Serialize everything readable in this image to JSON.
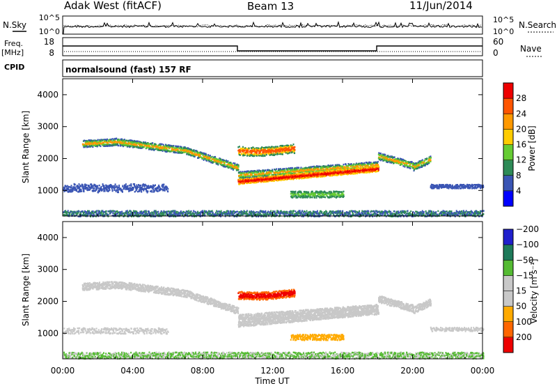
{
  "header": {
    "station": "Adak West (fitACF)",
    "beam": "Beam 13",
    "date": "11/Jun/2014"
  },
  "noise_panel": {
    "left_label": "N.Sky",
    "right_label": "N.Search",
    "left_ticks": [
      "10^5",
      "10^0"
    ],
    "right_ticks": [
      "10^5",
      "10^0"
    ]
  },
  "freq_panel": {
    "left_label_1": "Freq.",
    "left_label_2": "[MHz]",
    "right_label": "Nave",
    "left_ticks": [
      "18",
      "8"
    ],
    "right_ticks": [
      "60",
      "0"
    ]
  },
  "cpid": {
    "label": "CPID",
    "value": "normalsound (fast) 157 RF"
  },
  "colors": {
    "power": [
      "#0000ff",
      "#3a55b4",
      "#2e8b57",
      "#66cc33",
      "#ffcc00",
      "#ff9900",
      "#ff5500",
      "#ee0000"
    ],
    "velocity": [
      "#2020cc",
      "#1e7a5a",
      "#55bb33",
      "#c8c8c8",
      "#c8c8c8",
      "#ffaa00",
      "#ff6600",
      "#ee0000"
    ]
  },
  "chart_data": [
    {
      "type": "heatmap",
      "quantity": "power",
      "ylabel": "Slant Range [km]",
      "yticks": [
        "1000",
        "2000",
        "3000",
        "4000"
      ],
      "ylim": [
        200,
        4500
      ],
      "colorbar_label": "Power [dB]",
      "colorbar_ticks": [
        "4",
        "8",
        "12",
        "16",
        "20",
        "24",
        "28"
      ],
      "color_range": [
        0,
        32
      ]
    },
    {
      "type": "heatmap",
      "quantity": "velocity",
      "ylabel": "Slant Range [km]",
      "yticks": [
        "1000",
        "2000",
        "3000",
        "4000"
      ],
      "ylim": [
        200,
        4500
      ],
      "colorbar_label": "Velocity [m s⁻¹]",
      "colorbar_ticks": [
        "200",
        "100",
        "50",
        "15",
        "−15",
        "−50",
        "−100",
        "−200"
      ]
    }
  ],
  "time_axis": {
    "xlabel": "Time UT",
    "ticks": [
      "00:00",
      "04:00",
      "08:00",
      "12:00",
      "16:00",
      "20:00",
      "00:00"
    ]
  }
}
